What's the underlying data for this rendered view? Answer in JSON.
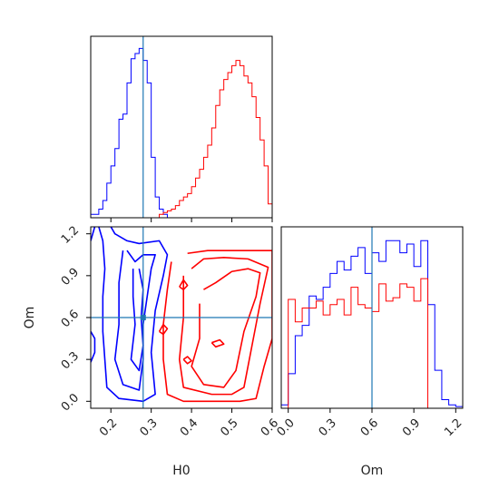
{
  "chart_data": [
    {
      "type": "histogram",
      "panel": "H0 marginal",
      "bin_edges": [
        0.15,
        0.16,
        0.17,
        0.18,
        0.19,
        0.2,
        0.21,
        0.22,
        0.23,
        0.24,
        0.25,
        0.26,
        0.27,
        0.28,
        0.29,
        0.3,
        0.31,
        0.32,
        0.33,
        0.34,
        0.35,
        0.36,
        0.37,
        0.38,
        0.39,
        0.4,
        0.41,
        0.42,
        0.43,
        0.44,
        0.45,
        0.46,
        0.47,
        0.48,
        0.49,
        0.5,
        0.51,
        0.52,
        0.53,
        0.54,
        0.55,
        0.56,
        0.57,
        0.58,
        0.59,
        0.6
      ],
      "xlim": [
        0.15,
        0.6
      ],
      "truth": 0.28,
      "series": [
        {
          "color": "#0000ff",
          "counts": [
            0.02,
            0.02,
            0.05,
            0.1,
            0.2,
            0.3,
            0.4,
            0.57,
            0.6,
            0.78,
            0.92,
            0.95,
            0.98,
            0.91,
            0.78,
            0.35,
            0.12,
            0.05,
            0.02,
            0,
            0,
            0,
            0,
            0,
            0,
            0,
            0,
            0,
            0,
            0,
            0,
            0,
            0,
            0,
            0,
            0,
            0,
            0,
            0,
            0,
            0,
            0,
            0,
            0,
            0
          ]
        },
        {
          "color": "#ff0000",
          "counts": [
            0,
            0,
            0,
            0,
            0,
            0,
            0,
            0,
            0,
            0,
            0,
            0,
            0,
            0,
            0,
            0,
            0,
            0.02,
            0.03,
            0.04,
            0.05,
            0.07,
            0.1,
            0.12,
            0.14,
            0.18,
            0.23,
            0.28,
            0.35,
            0.42,
            0.52,
            0.65,
            0.74,
            0.8,
            0.84,
            0.88,
            0.91,
            0.88,
            0.82,
            0.78,
            0.7,
            0.58,
            0.45,
            0.3,
            0.08
          ]
        }
      ]
    },
    {
      "type": "contour",
      "panel": "H0 vs Om",
      "xlabel": "H0",
      "ylabel": "Om",
      "xlim": [
        0.15,
        0.6
      ],
      "ylim": [
        -0.05,
        1.25
      ],
      "xticks": [
        "0.2",
        "0.3",
        "0.4",
        "0.5",
        "0.6"
      ],
      "yticks": [
        "0.0",
        "0.3",
        "0.6",
        "0.9",
        "1.2"
      ],
      "truth": {
        "x": 0.28,
        "y": 0.6
      },
      "series": [
        {
          "color": "#0000ff",
          "contours": [
            [
              [
                0.17,
                1.25
              ],
              [
                0.18,
                1.15
              ],
              [
                0.185,
                0.95
              ],
              [
                0.18,
                0.75
              ],
              [
                0.18,
                0.5
              ],
              [
                0.185,
                0.3
              ],
              [
                0.19,
                0.1
              ],
              [
                0.22,
                0.02
              ],
              [
                0.28,
                0.0
              ],
              [
                0.31,
                0.05
              ],
              [
                0.3,
                0.35
              ],
              [
                0.31,
                0.65
              ],
              [
                0.33,
                0.9
              ],
              [
                0.34,
                1.05
              ],
              [
                0.32,
                1.15
              ],
              [
                0.27,
                1.13
              ],
              [
                0.24,
                1.15
              ],
              [
                0.21,
                1.2
              ],
              [
                0.2,
                1.25
              ]
            ],
            [
              [
                0.23,
                1.08
              ],
              [
                0.22,
                0.85
              ],
              [
                0.22,
                0.55
              ],
              [
                0.21,
                0.3
              ],
              [
                0.23,
                0.12
              ],
              [
                0.27,
                0.08
              ],
              [
                0.28,
                0.3
              ],
              [
                0.28,
                0.55
              ],
              [
                0.29,
                0.75
              ],
              [
                0.3,
                0.95
              ],
              [
                0.31,
                1.05
              ],
              [
                0.28,
                1.05
              ],
              [
                0.26,
                1.0
              ],
              [
                0.24,
                1.08
              ]
            ],
            [
              [
                0.255,
                0.95
              ],
              [
                0.255,
                0.75
              ],
              [
                0.26,
                0.55
              ],
              [
                0.25,
                0.3
              ],
              [
                0.27,
                0.22
              ],
              [
                0.28,
                0.4
              ],
              [
                0.275,
                0.6
              ],
              [
                0.28,
                0.8
              ],
              [
                0.27,
                0.95
              ]
            ],
            [
              [
                0.15,
                0.28
              ],
              [
                0.16,
                0.35
              ],
              [
                0.16,
                0.45
              ],
              [
                0.15,
                0.5
              ]
            ],
            [
              [
                0.15,
                1.15
              ],
              [
                0.16,
                1.25
              ]
            ]
          ]
        },
        {
          "color": "#ff0000",
          "contours": [
            [
              [
                0.35,
                1.0
              ],
              [
                0.34,
                0.8
              ],
              [
                0.33,
                0.55
              ],
              [
                0.33,
                0.3
              ],
              [
                0.34,
                0.05
              ],
              [
                0.38,
                0.0
              ],
              [
                0.45,
                0.0
              ],
              [
                0.52,
                0.0
              ],
              [
                0.56,
                0.02
              ],
              [
                0.58,
                0.25
              ],
              [
                0.6,
                0.45
              ],
              [
                0.6,
                1.08
              ],
              [
                0.52,
                1.08
              ],
              [
                0.44,
                1.08
              ],
              [
                0.39,
                1.06
              ]
            ],
            [
              [
                0.38,
                0.9
              ],
              [
                0.38,
                0.6
              ],
              [
                0.37,
                0.3
              ],
              [
                0.38,
                0.1
              ],
              [
                0.45,
                0.05
              ],
              [
                0.5,
                0.05
              ],
              [
                0.53,
                0.1
              ],
              [
                0.55,
                0.4
              ],
              [
                0.57,
                0.7
              ],
              [
                0.59,
                0.96
              ],
              [
                0.54,
                1.02
              ],
              [
                0.48,
                1.03
              ],
              [
                0.43,
                1.02
              ],
              [
                0.4,
                0.95
              ]
            ],
            [
              [
                0.42,
                0.7
              ],
              [
                0.42,
                0.45
              ],
              [
                0.4,
                0.25
              ],
              [
                0.43,
                0.12
              ],
              [
                0.48,
                0.1
              ],
              [
                0.51,
                0.22
              ],
              [
                0.53,
                0.5
              ],
              [
                0.56,
                0.75
              ],
              [
                0.57,
                0.92
              ],
              [
                0.54,
                0.95
              ],
              [
                0.5,
                0.93
              ],
              [
                0.46,
                0.85
              ],
              [
                0.43,
                0.8
              ]
            ],
            [
              [
                0.37,
                0.82
              ],
              [
                0.38,
                0.87
              ],
              [
                0.39,
                0.83
              ],
              [
                0.38,
                0.8
              ],
              [
                0.37,
                0.82
              ]
            ],
            [
              [
                0.32,
                0.5
              ],
              [
                0.33,
                0.55
              ],
              [
                0.34,
                0.52
              ],
              [
                0.33,
                0.48
              ],
              [
                0.32,
                0.5
              ]
            ],
            [
              [
                0.45,
                0.42
              ],
              [
                0.47,
                0.44
              ],
              [
                0.48,
                0.41
              ],
              [
                0.46,
                0.39
              ],
              [
                0.45,
                0.42
              ]
            ],
            [
              [
                0.38,
                0.3
              ],
              [
                0.39,
                0.32
              ],
              [
                0.4,
                0.29
              ],
              [
                0.39,
                0.27
              ],
              [
                0.38,
                0.3
              ]
            ]
          ]
        }
      ]
    },
    {
      "type": "histogram",
      "panel": "Om marginal",
      "xlabel": "Om",
      "bin_edges": [
        -0.05,
        0.0,
        0.05,
        0.1,
        0.15,
        0.2,
        0.25,
        0.3,
        0.35,
        0.4,
        0.45,
        0.5,
        0.55,
        0.6,
        0.65,
        0.7,
        0.75,
        0.8,
        0.85,
        0.9,
        0.95,
        1.0,
        1.05,
        1.1,
        1.15,
        1.2,
        1.25
      ],
      "xlim": [
        -0.05,
        1.25
      ],
      "xticks": [
        "0.0",
        "0.3",
        "0.6",
        "0.9",
        "1.2"
      ],
      "truth": 0.6,
      "series": [
        {
          "color": "#0000ff",
          "counts": [
            0.02,
            0.2,
            0.42,
            0.48,
            0.65,
            0.63,
            0.7,
            0.78,
            0.85,
            0.8,
            0.88,
            0.93,
            0.78,
            0.9,
            0.85,
            0.97,
            0.97,
            0.9,
            0.95,
            0.82,
            0.97,
            0.6,
            0.22,
            0.05,
            0.02,
            0.01
          ]
        },
        {
          "color": "#ff0000",
          "counts": [
            0,
            0.63,
            0.5,
            0.58,
            0.58,
            0.62,
            0.54,
            0.6,
            0.63,
            0.54,
            0.7,
            0.6,
            0.58,
            0.56,
            0.72,
            0.62,
            0.64,
            0.72,
            0.7,
            0.62,
            0.75,
            0,
            0,
            0,
            0,
            0
          ]
        }
      ]
    }
  ]
}
